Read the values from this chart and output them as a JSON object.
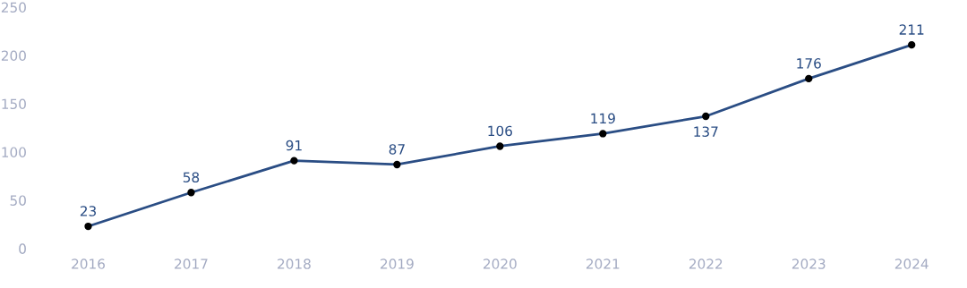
{
  "chart_data": {
    "type": "line",
    "categories": [
      "2016",
      "2017",
      "2018",
      "2019",
      "2020",
      "2021",
      "2022",
      "2023",
      "2024"
    ],
    "series": [
      {
        "color": "#2a4d84",
        "values": [
          23,
          58,
          91,
          87,
          106,
          119,
          137,
          176,
          211
        ]
      }
    ],
    "ylim": [
      0,
      250
    ],
    "yticks": [
      0,
      50,
      100,
      150,
      200,
      250
    ],
    "marker": "circle",
    "line_style": "solid",
    "data_labels": true,
    "grid": false,
    "legend": false
  }
}
